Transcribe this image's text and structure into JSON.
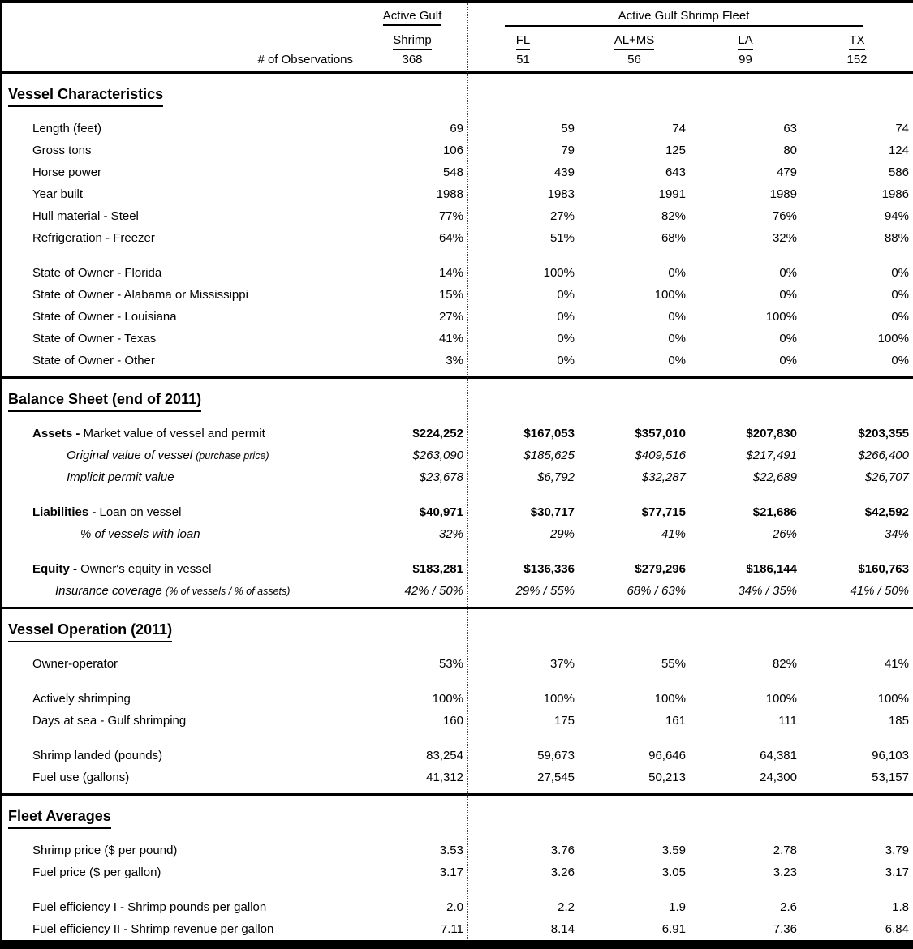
{
  "colors": {
    "text": "#000000",
    "background": "#ffffff",
    "rule": "#000000"
  },
  "header": {
    "col1_line1": "Active Gulf",
    "col1_line2": "Shrimp",
    "fleet_title": "Active Gulf Shrimp Fleet",
    "state_columns": [
      "FL",
      "AL+MS",
      "LA",
      "TX"
    ],
    "obs_label": "# of Observations",
    "obs_values": [
      "368",
      "51",
      "56",
      "99",
      "152"
    ]
  },
  "sections": [
    {
      "title": "Vessel Characteristics",
      "groups": [
        {
          "rows": [
            {
              "label": "Length (feet)",
              "style": "regular",
              "indent": 1,
              "values": [
                "69",
                "59",
                "74",
                "63",
                "74"
              ]
            },
            {
              "label": "Gross tons",
              "style": "regular",
              "indent": 1,
              "values": [
                "106",
                "79",
                "125",
                "80",
                "124"
              ]
            },
            {
              "label": "Horse power",
              "style": "regular",
              "indent": 1,
              "values": [
                "548",
                "439",
                "643",
                "479",
                "586"
              ]
            },
            {
              "label": "Year built",
              "style": "regular",
              "indent": 1,
              "values": [
                "1988",
                "1983",
                "1991",
                "1989",
                "1986"
              ]
            },
            {
              "label": "Hull material - Steel",
              "style": "regular",
              "indent": 1,
              "values": [
                "77%",
                "27%",
                "82%",
                "76%",
                "94%"
              ]
            },
            {
              "label": "Refrigeration - Freezer",
              "style": "regular",
              "indent": 1,
              "values": [
                "64%",
                "51%",
                "68%",
                "32%",
                "88%"
              ]
            }
          ]
        },
        {
          "rows": [
            {
              "label": "State of Owner - Florida",
              "style": "regular",
              "indent": 1,
              "values": [
                "14%",
                "100%",
                "0%",
                "0%",
                "0%"
              ]
            },
            {
              "label": "State of Owner - Alabama or Mississippi",
              "style": "regular",
              "indent": 1,
              "values": [
                "15%",
                "0%",
                "100%",
                "0%",
                "0%"
              ]
            },
            {
              "label": "State of Owner - Louisiana",
              "style": "regular",
              "indent": 1,
              "values": [
                "27%",
                "0%",
                "0%",
                "100%",
                "0%"
              ]
            },
            {
              "label": "State of Owner - Texas",
              "style": "regular",
              "indent": 1,
              "values": [
                "41%",
                "0%",
                "0%",
                "0%",
                "100%"
              ]
            },
            {
              "label": "State of Owner - Other",
              "style": "regular",
              "indent": 1,
              "values": [
                "3%",
                "0%",
                "0%",
                "0%",
                "0%"
              ]
            }
          ]
        }
      ]
    },
    {
      "title": "Balance Sheet (end of 2011)",
      "groups": [
        {
          "rows": [
            {
              "prefix": "Assets -",
              "label": "Market value of vessel and permit",
              "style": "bold",
              "indent": 1,
              "values": [
                "$224,252",
                "$167,053",
                "$357,010",
                "$207,830",
                "$203,355"
              ]
            },
            {
              "label": "Original value of vessel",
              "note": "(purchase price)",
              "style": "italic",
              "indent": 2,
              "values": [
                "$263,090",
                "$185,625",
                "$409,516",
                "$217,491",
                "$266,400"
              ]
            },
            {
              "label": "Implicit permit value",
              "style": "italic",
              "indent": 2,
              "values": [
                "$23,678",
                "$6,792",
                "$32,287",
                "$22,689",
                "$26,707"
              ]
            }
          ]
        },
        {
          "rows": [
            {
              "prefix": "Liabilities -",
              "label": "Loan on vessel",
              "style": "bold",
              "indent": 1,
              "values": [
                "$40,971",
                "$30,717",
                "$77,715",
                "$21,686",
                "$42,592"
              ]
            },
            {
              "label": "% of vessels with loan",
              "style": "italic",
              "indent": 3,
              "values": [
                "32%",
                "29%",
                "41%",
                "26%",
                "34%"
              ]
            }
          ]
        },
        {
          "rows": [
            {
              "prefix": "Equity -",
              "label": "Owner's equity in vessel",
              "style": "bold",
              "indent": 1,
              "values": [
                "$183,281",
                "$136,336",
                "$279,296",
                "$186,144",
                "$160,763"
              ]
            },
            {
              "label": "Insurance coverage",
              "note": "(% of vessels / % of assets)",
              "style": "italic",
              "indent": 4,
              "values": [
                "42% / 50%",
                "29% / 55%",
                "68% / 63%",
                "34% / 35%",
                "41% / 50%"
              ]
            }
          ]
        }
      ]
    },
    {
      "title": "Vessel Operation (2011)",
      "groups": [
        {
          "rows": [
            {
              "label": "Owner-operator",
              "style": "regular",
              "indent": 1,
              "values": [
                "53%",
                "37%",
                "55%",
                "82%",
                "41%"
              ]
            }
          ]
        },
        {
          "rows": [
            {
              "label": "Actively shrimping",
              "style": "regular",
              "indent": 1,
              "values": [
                "100%",
                "100%",
                "100%",
                "100%",
                "100%"
              ]
            },
            {
              "label": "Days at sea - Gulf shrimping",
              "style": "regular",
              "indent": 1,
              "values": [
                "160",
                "175",
                "161",
                "111",
                "185"
              ]
            }
          ]
        },
        {
          "rows": [
            {
              "label": "Shrimp landed (pounds)",
              "style": "regular",
              "indent": 1,
              "values": [
                "83,254",
                "59,673",
                "96,646",
                "64,381",
                "96,103"
              ]
            },
            {
              "label": "Fuel use (gallons)",
              "style": "regular",
              "indent": 1,
              "values": [
                "41,312",
                "27,545",
                "50,213",
                "24,300",
                "53,157"
              ]
            }
          ]
        }
      ]
    },
    {
      "title": "Fleet Averages",
      "groups": [
        {
          "rows": [
            {
              "label": "Shrimp price ($ per pound)",
              "style": "regular",
              "indent": 1,
              "values": [
                "3.53",
                "3.76",
                "3.59",
                "2.78",
                "3.79"
              ]
            },
            {
              "label": "Fuel price ($ per gallon)",
              "style": "regular",
              "indent": 1,
              "values": [
                "3.17",
                "3.26",
                "3.05",
                "3.23",
                "3.17"
              ]
            }
          ]
        },
        {
          "rows": [
            {
              "label": "Fuel efficiency I - Shrimp pounds per gallon",
              "style": "regular",
              "indent": 1,
              "values": [
                "2.0",
                "2.2",
                "1.9",
                "2.6",
                "1.8"
              ]
            },
            {
              "label": "Fuel efficiency II - Shrimp revenue per gallon",
              "style": "regular",
              "indent": 1,
              "values": [
                "7.11",
                "8.14",
                "6.91",
                "7.36",
                "6.84"
              ]
            }
          ]
        }
      ]
    }
  ]
}
